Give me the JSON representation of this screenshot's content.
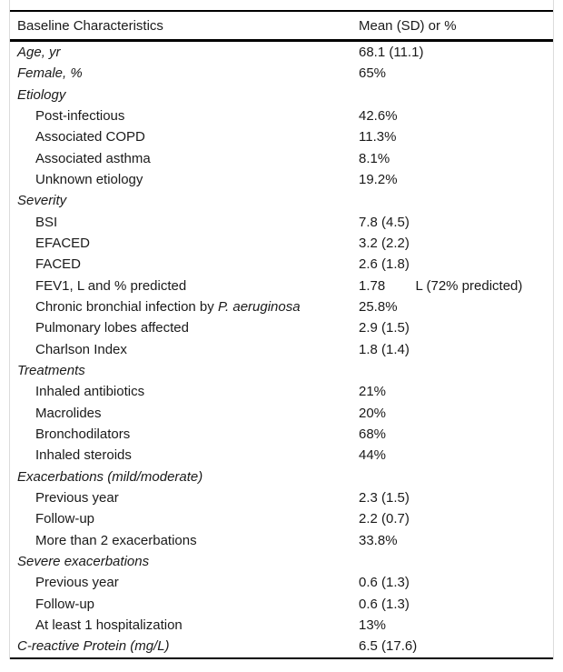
{
  "table": {
    "header": {
      "col1": "Baseline Characteristics",
      "col2": "Mean (SD) or %"
    },
    "rows": [
      {
        "style": "section",
        "label": "Age, yr",
        "label_italic": "",
        "value": "68.1 (11.1)"
      },
      {
        "style": "section",
        "label": "Female, %",
        "label_italic": "",
        "value": "65%"
      },
      {
        "style": "section",
        "label": "Etiology",
        "label_italic": "",
        "value": ""
      },
      {
        "style": "item",
        "label": "Post-infectious",
        "label_italic": "",
        "value": "42.6%"
      },
      {
        "style": "item",
        "label": "Associated COPD",
        "label_italic": "",
        "value": "11.3%"
      },
      {
        "style": "item",
        "label": "Associated asthma",
        "label_italic": "",
        "value": "8.1%"
      },
      {
        "style": "item",
        "label": "Unknown etiology",
        "label_italic": "",
        "value": "19.2%"
      },
      {
        "style": "section",
        "label": "Severity",
        "label_italic": "",
        "value": ""
      },
      {
        "style": "item",
        "label": "BSI",
        "label_italic": "",
        "value": "7.8 (4.5)"
      },
      {
        "style": "item",
        "label": "EFACED",
        "label_italic": "",
        "value": "3.2 (2.2)"
      },
      {
        "style": "item",
        "label": "FACED",
        "label_italic": "",
        "value": "2.6 (1.8)"
      },
      {
        "style": "item",
        "label": "FEV1, L and % predicted",
        "label_italic": "",
        "value": "1.78        L (72% predicted)"
      },
      {
        "style": "item",
        "label": "Chronic bronchial infection by ",
        "label_italic": "P. aeruginosa",
        "value": "25.8%"
      },
      {
        "style": "item",
        "label": "Pulmonary lobes affected",
        "label_italic": "",
        "value": "2.9 (1.5)"
      },
      {
        "style": "item",
        "label": "Charlson Index",
        "label_italic": "",
        "value": "1.8 (1.4)"
      },
      {
        "style": "section",
        "label": "Treatments",
        "label_italic": "",
        "value": ""
      },
      {
        "style": "item",
        "label": "Inhaled antibiotics",
        "label_italic": "",
        "value": "21%"
      },
      {
        "style": "item",
        "label": "Macrolides",
        "label_italic": "",
        "value": "20%"
      },
      {
        "style": "item",
        "label": "Bronchodilators",
        "label_italic": "",
        "value": "68%"
      },
      {
        "style": "item",
        "label": "Inhaled steroids",
        "label_italic": "",
        "value": "44%"
      },
      {
        "style": "section",
        "label": "Exacerbations (mild/moderate)",
        "label_italic": "",
        "value": ""
      },
      {
        "style": "item",
        "label": "Previous year",
        "label_italic": "",
        "value": "2.3 (1.5)"
      },
      {
        "style": "item",
        "label": "Follow-up",
        "label_italic": "",
        "value": "2.2 (0.7)"
      },
      {
        "style": "item",
        "label": "More than 2 exacerbations",
        "label_italic": "",
        "value": "33.8%"
      },
      {
        "style": "section",
        "label": "Severe exacerbations",
        "label_italic": "",
        "value": ""
      },
      {
        "style": "item",
        "label": "Previous year",
        "label_italic": "",
        "value": "0.6 (1.3)"
      },
      {
        "style": "item",
        "label": "Follow-up",
        "label_italic": "",
        "value": "0.6 (1.3)"
      },
      {
        "style": "item",
        "label": "At least 1 hospitalization",
        "label_italic": "",
        "value": "13%"
      },
      {
        "style": "section",
        "label": "C-reactive Protein (mg/L)",
        "label_italic": "",
        "value": "6.5 (17.6)"
      }
    ],
    "colors": {
      "rule": "#000000",
      "side_border": "#dcdcdc",
      "text": "#1a1a1a",
      "background": "#ffffff"
    }
  }
}
